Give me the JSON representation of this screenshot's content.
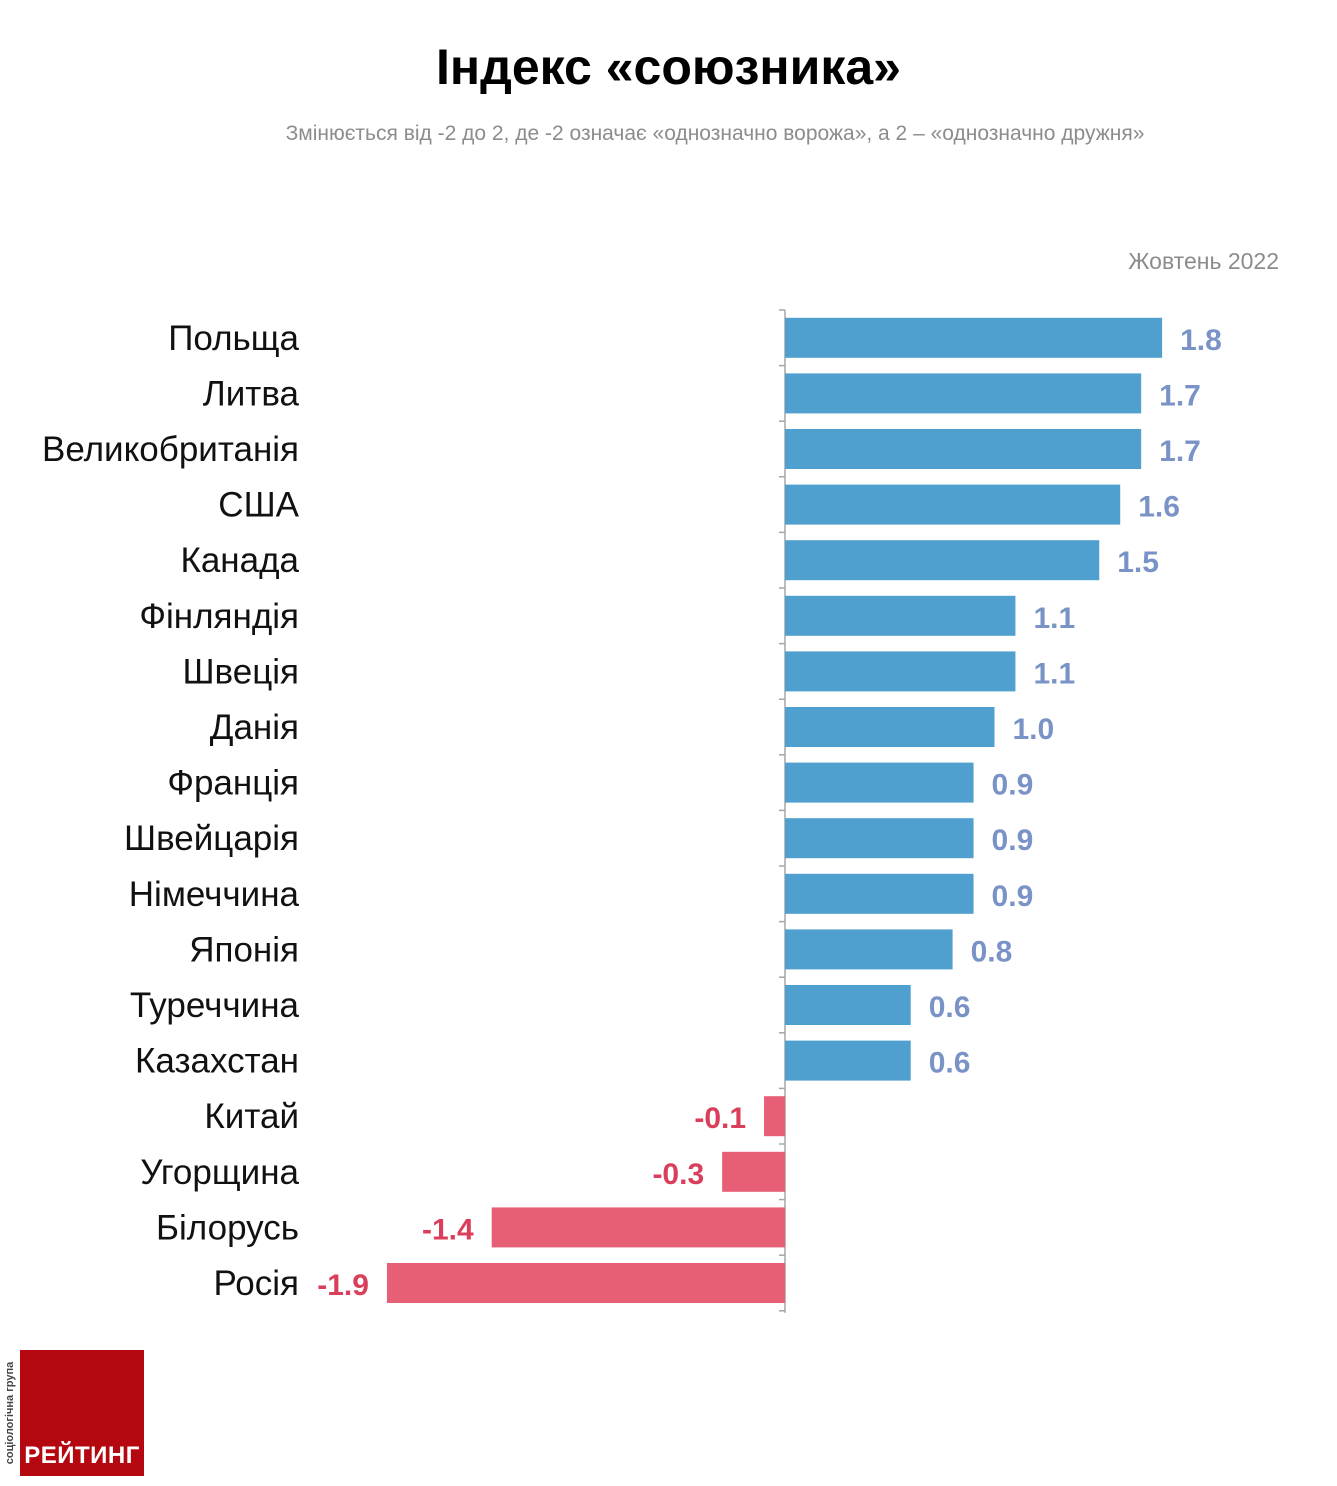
{
  "title": "Індекс «союзника»",
  "subtitle": "Змінюється від -2 до 2, де -2 означає «однозначно ворожа», а 2 – «однозначно дружня»",
  "period": "Жовтень 2022",
  "logo": {
    "name": "РЕЙТИНГ",
    "tagline": "соціологічна група"
  },
  "colors": {
    "positive": "#4f9fcf",
    "negative": "#e65f74",
    "positive_label": "#7a93c7",
    "negative_label": "#d93f5b"
  },
  "chart_data": {
    "type": "bar",
    "orientation": "horizontal",
    "title": "Індекс «союзника»",
    "subtitle": "Змінюється від -2 до 2, де -2 означає «однозначно ворожа», а 2 – «однозначно дружня»",
    "series_name": "Жовтень 2022",
    "xlim": [
      -2,
      2
    ],
    "grid": false,
    "categories": [
      "Польща",
      "Литва",
      "Великобританія",
      "США",
      "Канада",
      "Фінляндія",
      "Швеція",
      "Данія",
      "Франція",
      "Швейцарія",
      "Німеччина",
      "Японія",
      "Туреччина",
      "Казахстан",
      "Китай",
      "Угорщина",
      "Білорусь",
      "Росія"
    ],
    "values": [
      1.8,
      1.7,
      1.7,
      1.6,
      1.5,
      1.1,
      1.1,
      1.0,
      0.9,
      0.9,
      0.9,
      0.8,
      0.6,
      0.6,
      -0.1,
      -0.3,
      -1.4,
      -1.9
    ],
    "value_labels": [
      "1.8",
      "1.7",
      "1.7",
      "1.6",
      "1.5",
      "1.1",
      "1.1",
      "1.0",
      "0.9",
      "0.9",
      "0.9",
      "0.8",
      "0.6",
      "0.6",
      "-0.1",
      "-0.3",
      "-1.4",
      "-1.9"
    ]
  }
}
